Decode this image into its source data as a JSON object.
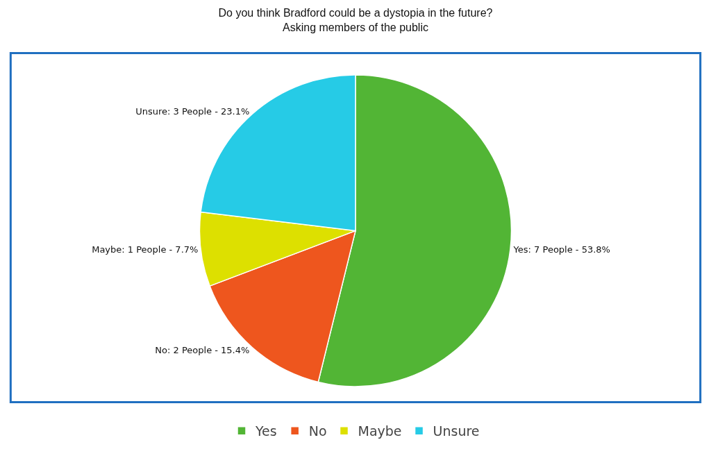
{
  "chart_data": {
    "type": "pie",
    "title": "Do you think Bradford could be a dystopia in the future?",
    "subtitle": "Asking members of the public",
    "categories": [
      "Yes",
      "No",
      "Maybe",
      "Unsure"
    ],
    "values": [
      7,
      2,
      1,
      3
    ],
    "colors": [
      "#52b535",
      "#ee561e",
      "#dde000",
      "#26cbe6"
    ],
    "value_labels": [
      "Yes: 7 People - 53.8%",
      "No: 2 People - 15.4%",
      "Maybe: 1 People - 7.7%",
      "Unsure: 3 People - 23.1%"
    ],
    "legend": "bottom"
  }
}
